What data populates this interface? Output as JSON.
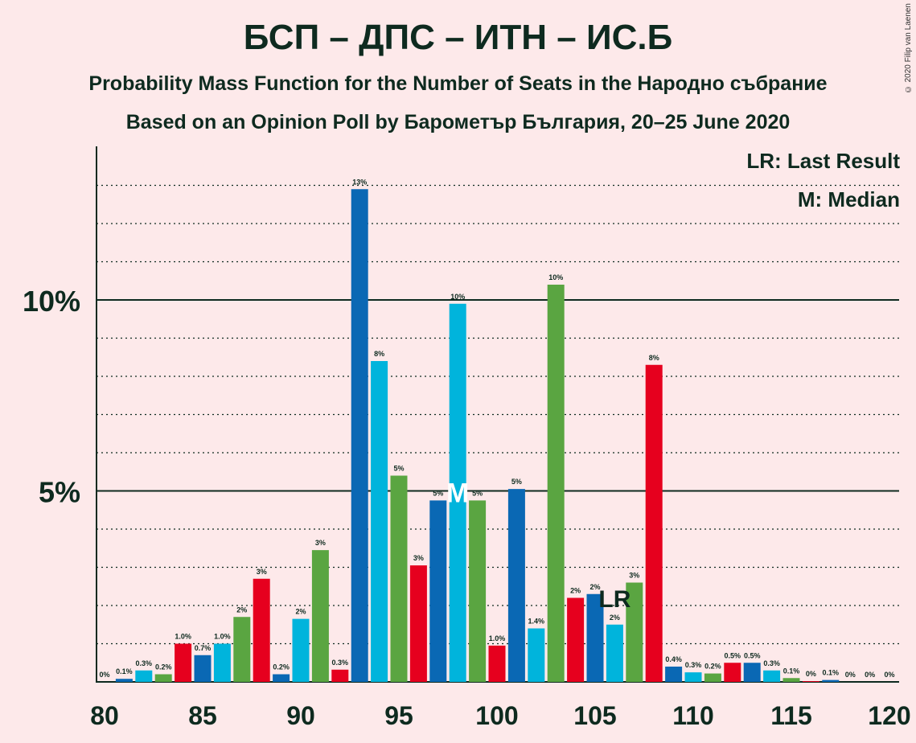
{
  "title": "БСП – ДПС – ИТН – ИС.Б",
  "subtitle1": "Probability Mass Function for the Number of Seats in the Народно събрание",
  "subtitle2": "Based on an Opinion Poll by Барометър България, 20–25 June 2020",
  "copyright": "© 2020 Filip van Laenen",
  "legend": {
    "lr": "LR: Last Result",
    "median": "M: Median"
  },
  "markers": {
    "lr_label": "LR",
    "lr_seat": 106,
    "median_label": "M",
    "median_seat": 98
  },
  "colors": {
    "background": "#fde9ea",
    "dark_blue": "#0a68b4",
    "light_blue": "#00b4dc",
    "green": "#5aa541",
    "red": "#e6001e"
  },
  "chart_data": {
    "type": "bar",
    "xlabel": "",
    "ylabel": "",
    "x_ticks": [
      80,
      85,
      90,
      95,
      100,
      105,
      110,
      115,
      120
    ],
    "y_ticks": [
      {
        "value": 5,
        "label": "5%"
      },
      {
        "value": 10,
        "label": "10%"
      }
    ],
    "ylim": [
      0,
      14
    ],
    "xlim": [
      80,
      120
    ],
    "grid": "dotted every 1%, solid at 5% and 10%",
    "color_cycle": [
      "dark_blue",
      "light_blue",
      "green",
      "red"
    ],
    "seats": [
      80,
      81,
      82,
      83,
      84,
      85,
      86,
      87,
      88,
      89,
      90,
      91,
      92,
      93,
      94,
      95,
      96,
      97,
      98,
      99,
      100,
      101,
      102,
      103,
      104,
      105,
      106,
      107,
      108,
      109,
      110,
      111,
      112,
      113,
      114,
      115,
      116,
      117,
      118,
      119,
      120
    ],
    "values": [
      0,
      0.08,
      0.3,
      0.2,
      1.0,
      0.7,
      1.0,
      1.7,
      2.7,
      0.2,
      1.65,
      3.45,
      0.32,
      12.9,
      8.4,
      5.4,
      3.05,
      4.75,
      9.9,
      4.75,
      0.95,
      5.05,
      1.4,
      10.4,
      2.2,
      2.3,
      1.5,
      2.6,
      8.3,
      0.4,
      0.25,
      0.22,
      0.5,
      0.5,
      0.3,
      0.1,
      0.02,
      0.05,
      0,
      0,
      0
    ],
    "labels": [
      "0%",
      "0.1%",
      "0.3%",
      "0.2%",
      "1.0%",
      "0.7%",
      "1.0%",
      "2%",
      "3%",
      "0.2%",
      "2%",
      "3%",
      "0.3%",
      "13%",
      "8%",
      "5%",
      "3%",
      "5%",
      "10%",
      "5%",
      "1.0%",
      "5%",
      "1.4%",
      "10%",
      "2%",
      "2%",
      "2%",
      "3%",
      "8%",
      "0.4%",
      "0.3%",
      "0.2%",
      "0.5%",
      "0.5%",
      "0.3%",
      "0.1%",
      "0%",
      "0.1%",
      "0%",
      "0%",
      "0%"
    ]
  }
}
